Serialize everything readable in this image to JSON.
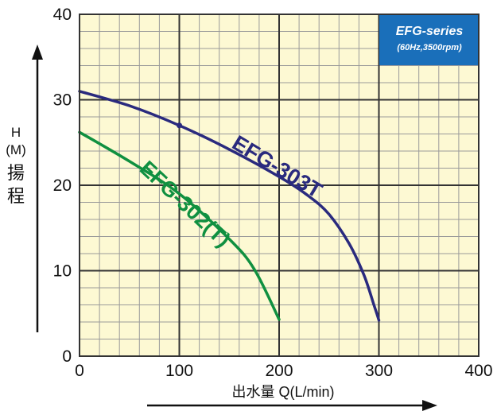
{
  "chart_data": {
    "type": "line",
    "title": "",
    "xlabel": "出水量 Q(L/min)",
    "ylabel": "H (M) 揚程",
    "ylabel_lines": [
      "H",
      "(M)",
      "揚",
      "程"
    ],
    "xlim": [
      0,
      400
    ],
    "ylim": [
      0,
      40
    ],
    "x_ticks": [
      0,
      100,
      200,
      300,
      400
    ],
    "y_ticks": [
      0,
      10,
      20,
      30,
      40
    ],
    "minor_grid_x_step": 20,
    "minor_grid_y_step": 2,
    "grid": true,
    "background_color": "#fdf9d3",
    "series": [
      {
        "name": "EFG-303T",
        "color": "#2a2a7e",
        "x": [
          0,
          50,
          100,
          150,
          200,
          230,
          250,
          270,
          285,
          295,
          300
        ],
        "y": [
          31.0,
          29.3,
          27.0,
          24.2,
          21.0,
          18.7,
          16.6,
          13.2,
          9.5,
          6.0,
          4.2
        ],
        "marker_x": 100,
        "marker_y": 27.0
      },
      {
        "name": "EFG-302(T)",
        "color": "#109040",
        "x": [
          0,
          50,
          100,
          150,
          175,
          200
        ],
        "y": [
          26.2,
          22.8,
          19.0,
          13.7,
          10.2,
          4.3
        ]
      }
    ]
  },
  "legend_box": {
    "title": "EFG-series",
    "subtitle": "(60Hz,3500rpm)",
    "color": "#1a6fba"
  }
}
